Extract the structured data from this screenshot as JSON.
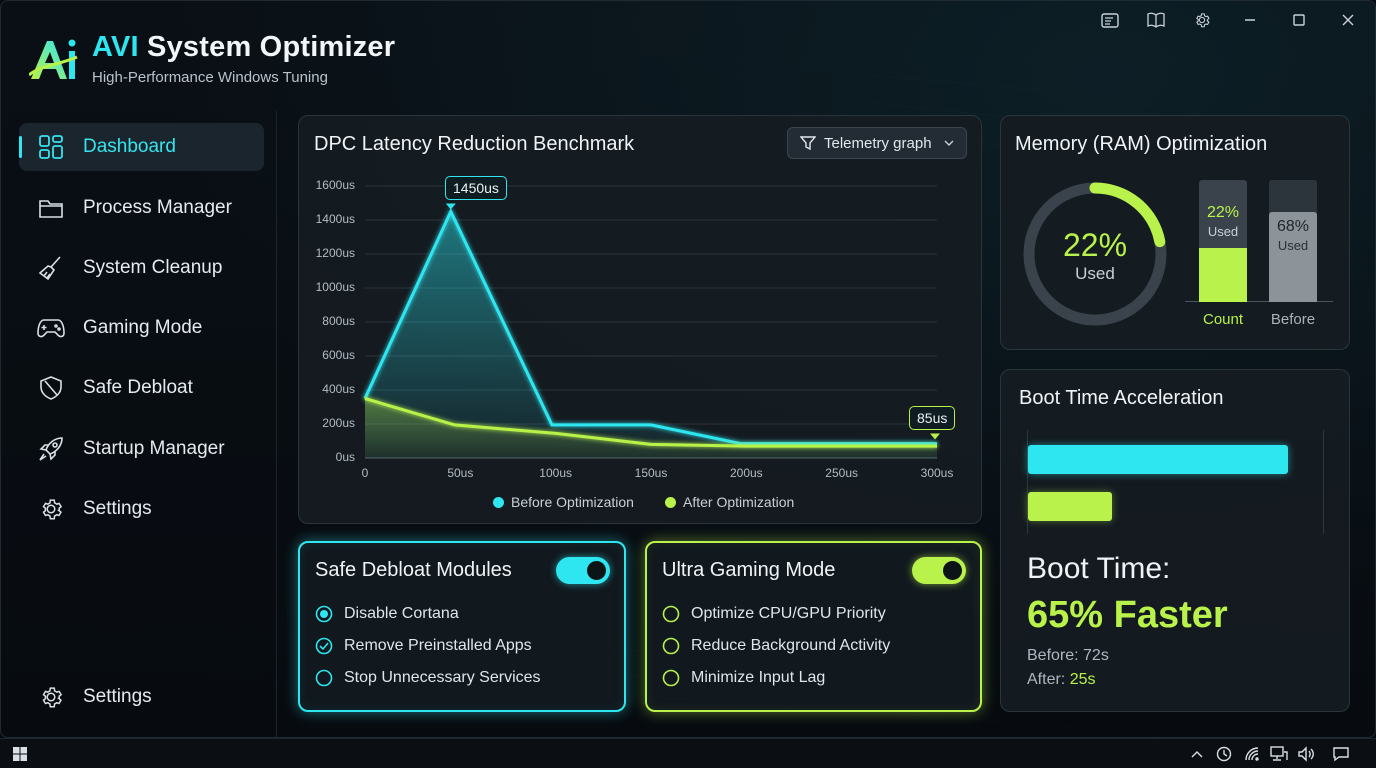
{
  "app": {
    "title_brand": "AVI",
    "title_rest": " System Optimizer",
    "subtitle": "High-Performance Windows Tuning"
  },
  "sidebar": {
    "items": [
      {
        "label": "Dashboard",
        "icon": "dashboard-grid-icon",
        "active": true
      },
      {
        "label": "Process Manager",
        "icon": "folder-icon"
      },
      {
        "label": "System Cleanup",
        "icon": "broom-icon"
      },
      {
        "label": "Gaming Mode",
        "icon": "gamepad-icon"
      },
      {
        "label": "Safe Debloat",
        "icon": "shield-icon"
      },
      {
        "label": "Startup Manager",
        "icon": "rocket-icon"
      },
      {
        "label": "Settings",
        "icon": "gear-icon"
      }
    ],
    "footer_label": "Settings"
  },
  "latency_panel": {
    "title": "DPC Latency Reduction Benchmark",
    "dropdown_label": "Telemetry graph",
    "peak_callout": "1450us",
    "end_callout": "85us",
    "legend_before": "Before Optimization",
    "legend_after": "After Optimization"
  },
  "chart_data": {
    "type": "area",
    "y_ticks": [
      "1600us",
      "1400us",
      "1200us",
      "1000us",
      "800us",
      "600us",
      "400us",
      "200us",
      "0us"
    ],
    "x_ticks": [
      "0",
      "50us",
      "100us",
      "150us",
      "200us",
      "250us",
      "300us"
    ],
    "ylim": [
      0,
      1600
    ],
    "xlim": [
      0,
      300
    ],
    "series": [
      {
        "name": "Before Optimization",
        "color": "#2ee6f0",
        "x": [
          0,
          45,
          98,
          150,
          197,
          300
        ],
        "y": [
          350,
          1450,
          195,
          195,
          85,
          85
        ]
      },
      {
        "name": "After Optimization",
        "color": "#b8f24a",
        "x": [
          0,
          47,
          100,
          150,
          200,
          300
        ],
        "y": [
          350,
          195,
          145,
          80,
          70,
          70
        ]
      }
    ]
  },
  "ram_panel": {
    "title": "Memory (RAM) Optimization",
    "donut_value": "22%",
    "donut_caption": "Used",
    "donut_fraction": 0.22,
    "bars": [
      {
        "value": "22%",
        "caption": "Used",
        "label": "Count",
        "fraction": 0.22
      },
      {
        "value": "68%",
        "caption": "Used",
        "label": "Before",
        "fraction": 0.68
      }
    ]
  },
  "debloat_card": {
    "title": "Safe Debloat Modules",
    "options": [
      "Disable Cortana",
      "Remove Preinstalled Apps",
      "Stop Unnecessary Services"
    ]
  },
  "gaming_card": {
    "title": "Ultra Gaming Mode",
    "options": [
      "Optimize CPU/GPU Priority",
      "Reduce Background Activity",
      "Minimize Input Lag"
    ]
  },
  "boot_panel": {
    "title": "Boot Time Acceleration",
    "before_seconds": 72,
    "after_seconds": 25,
    "headline": "Boot Time:",
    "percent_text": "65% Faster",
    "before_prefix": "Before: ",
    "before_value": "72s",
    "after_prefix": "After: ",
    "after_value": "25s"
  },
  "colors": {
    "cyan": "#2ee6f0",
    "lime": "#b8f24a",
    "panel": "#161c22"
  }
}
